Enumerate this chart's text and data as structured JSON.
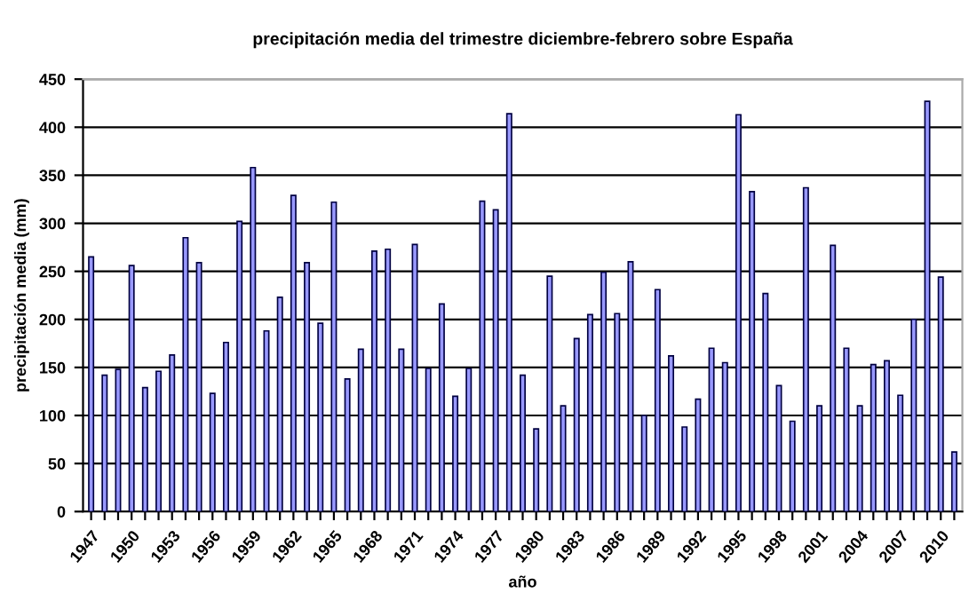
{
  "chart_data": {
    "type": "bar",
    "title": "precipitación media del trimestre diciembre-febrero sobre España",
    "xlabel": "año",
    "ylabel": "precipitación media (mm)",
    "categories": [
      "1947",
      null,
      null,
      "1950",
      null,
      null,
      "1953",
      null,
      null,
      "1956",
      null,
      null,
      "1959",
      null,
      null,
      "1962",
      null,
      null,
      "1965",
      null,
      null,
      "1968",
      null,
      null,
      "1971",
      null,
      null,
      "1974",
      null,
      null,
      "1977",
      null,
      null,
      "1980",
      null,
      null,
      "1983",
      null,
      null,
      "1986",
      null,
      null,
      "1989",
      null,
      null,
      "1992",
      null,
      null,
      "1995",
      null,
      null,
      "1998",
      null,
      null,
      "2001",
      null,
      null,
      "2004",
      null,
      null,
      "2007",
      null,
      null,
      "2010",
      null
    ],
    "series": [
      {
        "color": "#9999ff",
        "values": [
          265,
          142,
          148,
          256,
          129,
          146,
          163,
          285,
          259,
          123,
          176,
          302,
          358,
          188,
          223,
          329,
          259,
          196,
          322,
          138,
          169,
          271,
          273,
          169,
          278,
          149,
          216,
          120,
          149,
          323,
          314,
          414,
          142,
          86,
          245,
          110,
          180,
          205,
          249,
          206,
          260,
          100,
          231,
          162,
          88,
          117,
          170,
          155,
          413,
          333,
          227,
          131,
          94,
          337,
          110,
          277,
          170,
          110,
          153,
          157,
          121,
          200,
          427,
          244,
          62
        ]
      }
    ],
    "ylim": [
      0,
      450
    ],
    "yticks": [
      0,
      50,
      100,
      150,
      200,
      250,
      300,
      350,
      400,
      450
    ],
    "grid": "y",
    "legend": false
  }
}
